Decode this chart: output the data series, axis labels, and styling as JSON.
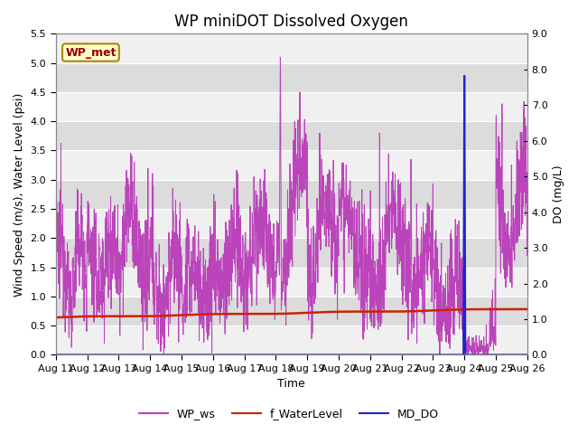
{
  "title": "WP miniDOT Dissolved Oxygen",
  "xlabel": "Time",
  "ylabel_left": "Wind Speed (m/s), Water Level (psi)",
  "ylabel_right": "DO (mg/L)",
  "ylim_left": [
    0.0,
    5.5
  ],
  "ylim_right": [
    0.0,
    9.0
  ],
  "yticks_left": [
    0.0,
    0.5,
    1.0,
    1.5,
    2.0,
    2.5,
    3.0,
    3.5,
    4.0,
    4.5,
    5.0,
    5.5
  ],
  "yticks_right": [
    0.0,
    1.0,
    2.0,
    3.0,
    4.0,
    5.0,
    6.0,
    7.0,
    8.0,
    9.0
  ],
  "xtick_labels": [
    "Aug 11",
    "Aug 12",
    "Aug 13",
    "Aug 14",
    "Aug 15",
    "Aug 16",
    "Aug 17",
    "Aug 18",
    "Aug 19",
    "Aug 20",
    "Aug 21",
    "Aug 22",
    "Aug 23",
    "Aug 24",
    "Aug 25",
    "Aug 26"
  ],
  "wp_ws_color": "#BB44BB",
  "water_level_color": "#CC2200",
  "md_do_color": "#2222CC",
  "legend_labels": [
    "WP_ws",
    "f_WaterLevel",
    "MD_DO"
  ],
  "wp_met_label": "WP_met",
  "wp_met_bg": "#FFFFCC",
  "wp_met_border": "#AA8800",
  "bg_light": "#F0F0F0",
  "bg_dark": "#DCDCDC",
  "grid_color": "#FFFFFF",
  "title_fontsize": 12,
  "axis_fontsize": 9,
  "tick_fontsize": 8
}
